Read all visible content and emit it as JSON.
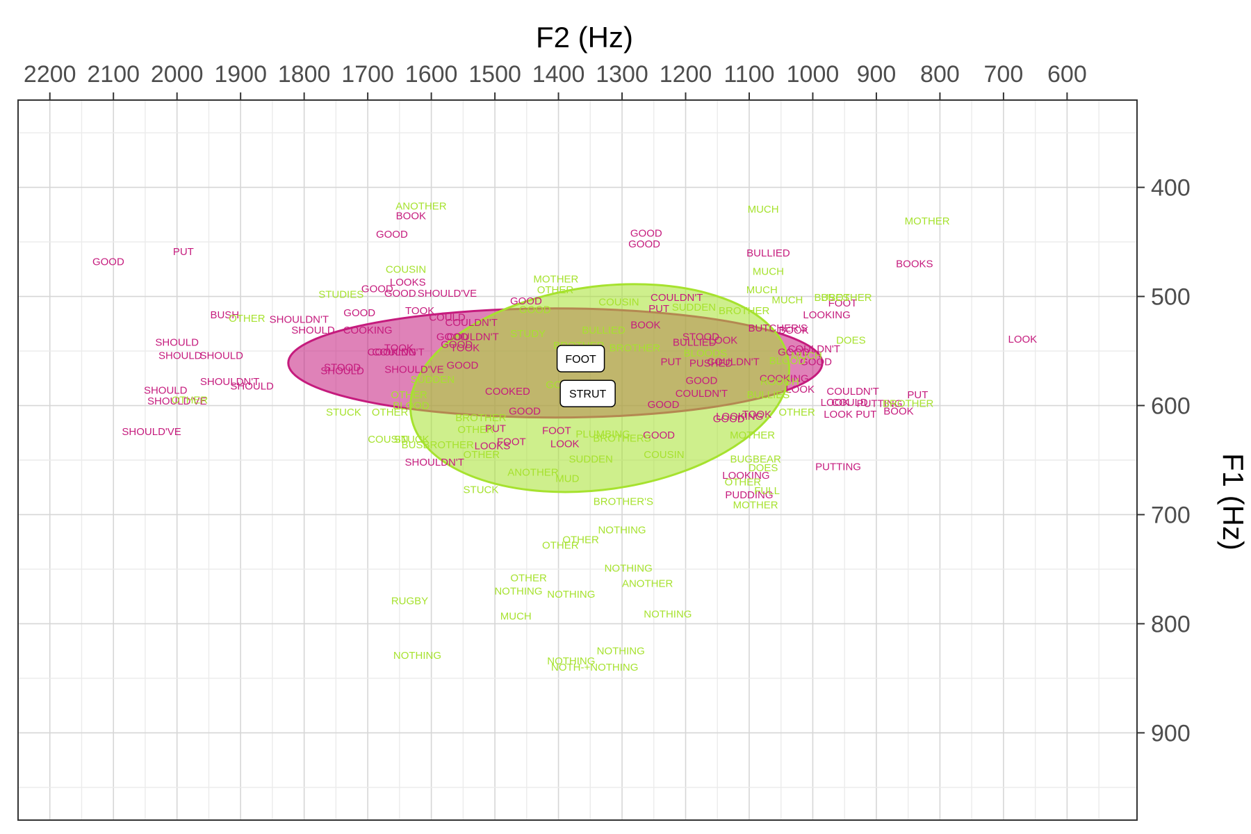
{
  "chart_data": {
    "type": "scatter",
    "title": "",
    "xlabel": "F2 (Hz)",
    "ylabel": "F1 (Hz)",
    "x_axis_position": "top",
    "y_axis_position": "right",
    "x_reversed": true,
    "y_reversed": true,
    "xlim": [
      2250,
      490
    ],
    "ylim": [
      320,
      980
    ],
    "x_ticks": [
      2200,
      2100,
      2000,
      1900,
      1800,
      1700,
      1600,
      1500,
      1400,
      1300,
      1200,
      1100,
      1000,
      900,
      800,
      700,
      600
    ],
    "y_ticks": [
      400,
      500,
      600,
      700,
      800,
      900
    ],
    "grid": true,
    "legend": "none",
    "colors": {
      "FOOT": "#c51b7d",
      "STRUT": "#a6e22e"
    },
    "ellipses": [
      {
        "vowel": "FOOT",
        "center": [
          1405,
          561
        ],
        "rx": 420,
        "ry": 50,
        "angle_deg": 0
      },
      {
        "vowel": "STRUT",
        "center": [
          1335,
          584
        ],
        "rx": 300,
        "ry": 93,
        "angle_deg": -8
      }
    ],
    "vowel_labels": [
      {
        "text": "FOOT",
        "x": 1365,
        "y": 557
      },
      {
        "text": "STRUT",
        "x": 1354,
        "y": 589
      }
    ],
    "series": [
      {
        "name": "FOOT",
        "points": [
          {
            "w": "GOOD",
            "x": 2108,
            "y": 468
          },
          {
            "w": "PUT",
            "x": 1990,
            "y": 459
          },
          {
            "w": "BUSH",
            "x": 1925,
            "y": 517
          },
          {
            "w": "SHOULD",
            "x": 2000,
            "y": 542
          },
          {
            "w": "SHOULD",
            "x": 1995,
            "y": 554
          },
          {
            "w": "SHOULD",
            "x": 1930,
            "y": 554
          },
          {
            "w": "SHOULDN'T",
            "x": 1917,
            "y": 578
          },
          {
            "w": "SHOULD",
            "x": 1882,
            "y": 582
          },
          {
            "w": "SHOULD",
            "x": 2018,
            "y": 586
          },
          {
            "w": "SHOULD'VE",
            "x": 2000,
            "y": 596
          },
          {
            "w": "SHOULD'VE",
            "x": 2040,
            "y": 624
          },
          {
            "w": "SHOULDN'T",
            "x": 1808,
            "y": 521
          },
          {
            "w": "SHOULD",
            "x": 1786,
            "y": 531
          },
          {
            "w": "COOKING",
            "x": 1700,
            "y": 531
          },
          {
            "w": "GOOD",
            "x": 1713,
            "y": 515
          },
          {
            "w": "GOOD",
            "x": 1685,
            "y": 493
          },
          {
            "w": "GOOD",
            "x": 1649,
            "y": 497
          },
          {
            "w": "LOOKS",
            "x": 1637,
            "y": 487
          },
          {
            "w": "SHOULD'VE",
            "x": 1575,
            "y": 497
          },
          {
            "w": "BOOK",
            "x": 1632,
            "y": 426
          },
          {
            "w": "GOOD",
            "x": 1662,
            "y": 443
          },
          {
            "w": "TOOK",
            "x": 1618,
            "y": 513
          },
          {
            "w": "COULD",
            "x": 1575,
            "y": 519
          },
          {
            "w": "COULDN'T",
            "x": 1537,
            "y": 524
          },
          {
            "w": "COULDN'T",
            "x": 1535,
            "y": 537
          },
          {
            "w": "COULDN'T",
            "x": 1652,
            "y": 551
          },
          {
            "w": "COOKING",
            "x": 1662,
            "y": 551
          },
          {
            "w": "TOOK",
            "x": 1651,
            "y": 547
          },
          {
            "w": "STOOD",
            "x": 1740,
            "y": 565
          },
          {
            "w": "SHOULD",
            "x": 1740,
            "y": 568
          },
          {
            "w": "SHOULD'VE",
            "x": 1627,
            "y": 567
          },
          {
            "w": "GOOD",
            "x": 1560,
            "y": 544
          },
          {
            "w": "GOOD",
            "x": 1567,
            "y": 537
          },
          {
            "w": "TOOK",
            "x": 1547,
            "y": 547
          },
          {
            "w": "GOOD",
            "x": 1551,
            "y": 563
          },
          {
            "w": "COOKED",
            "x": 1480,
            "y": 587
          },
          {
            "w": "GOOD",
            "x": 1451,
            "y": 504
          },
          {
            "w": "GOOD",
            "x": 1453,
            "y": 605
          },
          {
            "w": "PUT",
            "x": 1499,
            "y": 621
          },
          {
            "w": "LOOKS",
            "x": 1504,
            "y": 637
          },
          {
            "w": "FOOT",
            "x": 1474,
            "y": 633
          },
          {
            "w": "FOOT",
            "x": 1403,
            "y": 623
          },
          {
            "w": "LOOK",
            "x": 1390,
            "y": 635
          },
          {
            "w": "SHOULDN'T",
            "x": 1595,
            "y": 652
          },
          {
            "w": "GOOD",
            "x": 1262,
            "y": 442
          },
          {
            "w": "GOOD",
            "x": 1265,
            "y": 452
          },
          {
            "w": "PUT",
            "x": 1242,
            "y": 511
          },
          {
            "w": "BOOK",
            "x": 1263,
            "y": 526
          },
          {
            "w": "COULDN'T",
            "x": 1214,
            "y": 501
          },
          {
            "w": "BULLIED",
            "x": 1186,
            "y": 542
          },
          {
            "w": "STOOD",
            "x": 1176,
            "y": 537
          },
          {
            "w": "PUT",
            "x": 1223,
            "y": 560
          },
          {
            "w": "PUSHED",
            "x": 1160,
            "y": 561
          },
          {
            "w": "LOOK",
            "x": 1141,
            "y": 540
          },
          {
            "w": "COULDN'T",
            "x": 1125,
            "y": 560
          },
          {
            "w": "GOOD",
            "x": 1175,
            "y": 577
          },
          {
            "w": "COULDN'T",
            "x": 1175,
            "y": 589
          },
          {
            "w": "GOOD",
            "x": 1235,
            "y": 599
          },
          {
            "w": "GOOD",
            "x": 1242,
            "y": 627
          },
          {
            "w": "GOOD",
            "x": 1132,
            "y": 612
          },
          {
            "w": "LOOKING",
            "x": 1115,
            "y": 610
          },
          {
            "w": "LOOKING",
            "x": 1105,
            "y": 664
          },
          {
            "w": "PUDDING",
            "x": 1100,
            "y": 682
          },
          {
            "w": "BULLIED",
            "x": 1070,
            "y": 460
          },
          {
            "w": "BUTCHER'S",
            "x": 1055,
            "y": 529
          },
          {
            "w": "BOOK",
            "x": 1030,
            "y": 531
          },
          {
            "w": "GOOD",
            "x": 1030,
            "y": 551
          },
          {
            "w": "COULDN'T",
            "x": 998,
            "y": 548
          },
          {
            "w": "GOOD",
            "x": 995,
            "y": 560
          },
          {
            "w": "COOKING",
            "x": 1045,
            "y": 575
          },
          {
            "w": "LOOK",
            "x": 1020,
            "y": 585
          },
          {
            "w": "TOOK",
            "x": 1088,
            "y": 608
          },
          {
            "w": "LOOKING",
            "x": 978,
            "y": 517
          },
          {
            "w": "FOOT",
            "x": 953,
            "y": 506
          },
          {
            "w": "COULDN'T",
            "x": 937,
            "y": 587
          },
          {
            "w": "LOOK",
            "x": 965,
            "y": 597
          },
          {
            "w": "COULD",
            "x": 942,
            "y": 597
          },
          {
            "w": "PUTTING",
            "x": 895,
            "y": 598
          },
          {
            "w": "PUT",
            "x": 916,
            "y": 608
          },
          {
            "w": "LOOK",
            "x": 960,
            "y": 608
          },
          {
            "w": "BOOK",
            "x": 865,
            "y": 605
          },
          {
            "w": "PUT",
            "x": 835,
            "y": 590
          },
          {
            "w": "PUTTING",
            "x": 960,
            "y": 656
          },
          {
            "w": "BOOKS",
            "x": 840,
            "y": 470
          },
          {
            "w": "LOOK",
            "x": 670,
            "y": 539
          }
        ]
      },
      {
        "name": "STRUT",
        "points": [
          {
            "w": "ANOTHER",
            "x": 1616,
            "y": 417
          },
          {
            "w": "COUSIN",
            "x": 1640,
            "y": 475
          },
          {
            "w": "STUDIES",
            "x": 1742,
            "y": 498
          },
          {
            "w": "OTHER",
            "x": 1890,
            "y": 520
          },
          {
            "w": "OTHER",
            "x": 1980,
            "y": 595
          },
          {
            "w": "STUCK",
            "x": 1738,
            "y": 606
          },
          {
            "w": "OTHER",
            "x": 1665,
            "y": 606
          },
          {
            "w": "BLOOD",
            "x": 1632,
            "y": 600
          },
          {
            "w": "OTHER",
            "x": 1635,
            "y": 590
          },
          {
            "w": "SUDDEN",
            "x": 1598,
            "y": 576
          },
          {
            "w": "COUSIN",
            "x": 1668,
            "y": 631
          },
          {
            "w": "STUCK",
            "x": 1631,
            "y": 631
          },
          {
            "w": "BUSBROTHER",
            "x": 1590,
            "y": 636
          },
          {
            "w": "BROTHER",
            "x": 1522,
            "y": 611
          },
          {
            "w": "OTHER",
            "x": 1530,
            "y": 622
          },
          {
            "w": "OTHER",
            "x": 1521,
            "y": 645
          },
          {
            "w": "STUCK",
            "x": 1522,
            "y": 677
          },
          {
            "w": "ANOTHER",
            "x": 1440,
            "y": 661
          },
          {
            "w": "MUD",
            "x": 1386,
            "y": 667
          },
          {
            "w": "BROTHER'S",
            "x": 1298,
            "y": 688
          },
          {
            "w": "SUDDEN",
            "x": 1349,
            "y": 649
          },
          {
            "w": "BROTHERS",
            "x": 1300,
            "y": 630
          },
          {
            "w": "COUSIN",
            "x": 1234,
            "y": 645
          },
          {
            "w": "MOTHER",
            "x": 1404,
            "y": 484
          },
          {
            "w": "OTHER",
            "x": 1405,
            "y": 494
          },
          {
            "w": "COUSIN",
            "x": 1305,
            "y": 505
          },
          {
            "w": "GOOD",
            "x": 1437,
            "y": 512
          },
          {
            "w": "BULLIED",
            "x": 1329,
            "y": 531
          },
          {
            "w": "STUDY",
            "x": 1448,
            "y": 534
          },
          {
            "w": "BROTHER",
            "x": 1368,
            "y": 545
          },
          {
            "w": "COUSIN",
            "x": 1368,
            "y": 566
          },
          {
            "w": "GOOD",
            "x": 1395,
            "y": 581
          },
          {
            "w": "BROTHER",
            "x": 1280,
            "y": 547
          },
          {
            "w": "PLUMBING",
            "x": 1330,
            "y": 626
          },
          {
            "w": "SUDDEN",
            "x": 1187,
            "y": 510
          },
          {
            "w": "BLOODS",
            "x": 1169,
            "y": 552
          },
          {
            "w": "MUCH",
            "x": 1078,
            "y": 420
          },
          {
            "w": "MUCH",
            "x": 1070,
            "y": 477
          },
          {
            "w": "MUCH",
            "x": 1080,
            "y": 494
          },
          {
            "w": "BROTHER",
            "x": 1108,
            "y": 513
          },
          {
            "w": "MUCH",
            "x": 1040,
            "y": 503
          },
          {
            "w": "BUSES",
            "x": 970,
            "y": 501
          },
          {
            "w": "BROTHER",
            "x": 947,
            "y": 501
          },
          {
            "w": "DOES",
            "x": 940,
            "y": 540
          },
          {
            "w": "MUCH",
            "x": 1010,
            "y": 554
          },
          {
            "w": "BLOOD",
            "x": 1040,
            "y": 559
          },
          {
            "w": "ROUGH",
            "x": 1052,
            "y": 578
          },
          {
            "w": "BULLIES",
            "x": 1070,
            "y": 590
          },
          {
            "w": "OTHER",
            "x": 1025,
            "y": 606
          },
          {
            "w": "MOTHER",
            "x": 1095,
            "y": 627
          },
          {
            "w": "BUGBEAR",
            "x": 1090,
            "y": 649
          },
          {
            "w": "DOES",
            "x": 1078,
            "y": 657
          },
          {
            "w": "OTHER",
            "x": 1110,
            "y": 670
          },
          {
            "w": "FULL",
            "x": 1072,
            "y": 678
          },
          {
            "w": "MOTHER",
            "x": 1090,
            "y": 691
          },
          {
            "w": "MOTHER",
            "x": 820,
            "y": 431
          },
          {
            "w": "BROTHER",
            "x": 850,
            "y": 598
          },
          {
            "w": "NOTHING",
            "x": 1300,
            "y": 714
          },
          {
            "w": "OTHER",
            "x": 1397,
            "y": 728
          },
          {
            "w": "OTHER",
            "x": 1365,
            "y": 723
          },
          {
            "w": "NOTHING",
            "x": 1290,
            "y": 749
          },
          {
            "w": "ANOTHER",
            "x": 1260,
            "y": 763
          },
          {
            "w": "OTHER",
            "x": 1447,
            "y": 758
          },
          {
            "w": "NOTHING",
            "x": 1463,
            "y": 770
          },
          {
            "w": "NOTHING",
            "x": 1380,
            "y": 773
          },
          {
            "w": "MUCH",
            "x": 1467,
            "y": 793
          },
          {
            "w": "NOTHING",
            "x": 1228,
            "y": 791
          },
          {
            "w": "RUGBY",
            "x": 1634,
            "y": 779
          },
          {
            "w": "NOTHING",
            "x": 1622,
            "y": 829
          },
          {
            "w": "NOTHING",
            "x": 1380,
            "y": 834
          },
          {
            "w": "NOTHING",
            "x": 1302,
            "y": 825
          },
          {
            "w": "NOTH-+NOTHING",
            "x": 1343,
            "y": 840
          }
        ]
      }
    ]
  }
}
